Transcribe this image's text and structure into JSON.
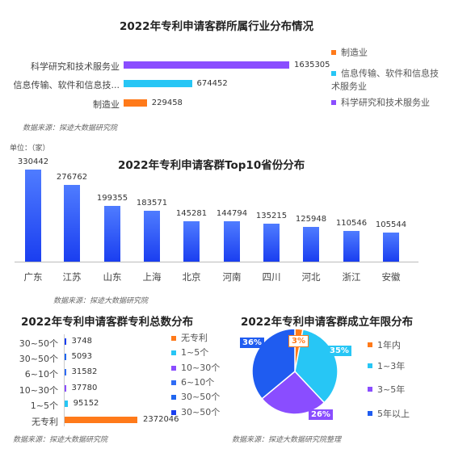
{
  "chart_data": [
    {
      "type": "bar",
      "orientation": "horizontal",
      "title": "2022年专利申请客群所属行业分布情况",
      "categories": [
        "科学研究和技术服务业",
        "信息传输、软件和信息技术服务业",
        "制造业"
      ],
      "categories_display": [
        "科学研究和技术服务业",
        "信息传输、软件和信息技...",
        "制造业"
      ],
      "values": [
        1635305,
        674452,
        229458
      ],
      "colors": [
        "#8a4dff",
        "#27c6f5",
        "#ff7a1a"
      ],
      "legend": [
        "制造业",
        "信息传输、软件和信息技术服务业",
        "科学研究和技术服务业"
      ],
      "legend_colors": [
        "#ff7a1a",
        "#27c6f5",
        "#8a4dff"
      ],
      "legend_placement": "right",
      "source": "数据来源：探迹大数据研究院"
    },
    {
      "type": "bar",
      "orientation": "vertical",
      "title": "2022年专利申请客群Top10省份分布",
      "unit": "单位：（家）",
      "categories": [
        "广东",
        "江苏",
        "山东",
        "上海",
        "北京",
        "河南",
        "四川",
        "河北",
        "浙江",
        "安徽"
      ],
      "values": [
        330442,
        276762,
        199355,
        183571,
        145281,
        144794,
        135215,
        125948,
        110546,
        105544
      ],
      "color_top": "#4f7cff",
      "color_bottom": "#1a3ef0",
      "source": "数据来源：探迹大数据研究院"
    },
    {
      "type": "bar",
      "orientation": "horizontal",
      "title": "2022年专利申请客群专利总数分布",
      "categories": [
        "30~50个",
        "30~50个",
        "6~10个",
        "10~30个",
        "1~5个",
        "无专利"
      ],
      "values": [
        3748,
        5093,
        31582,
        37780,
        95152,
        2372046
      ],
      "colors": [
        "#1a3ef0",
        "#1f66f0",
        "#2f6cf5",
        "#8a4dff",
        "#27c6f5",
        "#ff7a1a"
      ],
      "legend": [
        "无专利",
        "1~5个",
        "10~30个",
        "6~10个",
        "30~50个",
        "30~50个"
      ],
      "legend_colors": [
        "#ff7a1a",
        "#27c6f5",
        "#8a4dff",
        "#2f6cf5",
        "#1f66f0",
        "#1a3ef0"
      ],
      "legend_placement": "right",
      "source": "数据来源：探迹大数据研究院"
    },
    {
      "type": "pie",
      "title": "2022年专利申请客群成立年限分布",
      "slices": [
        {
          "label": "1年内",
          "value": 3,
          "display": "3%",
          "color": "#ff7a1a"
        },
        {
          "label": "1~3年",
          "value": 35,
          "display": "35%",
          "color": "#27c6f5"
        },
        {
          "label": "3~5年",
          "value": 26,
          "display": "26%",
          "color": "#8a4dff"
        },
        {
          "label": "5年以上",
          "value": 36,
          "display": "36%",
          "color": "#1f5cf0"
        }
      ],
      "legend_placement": "right",
      "source": "数据来源：探迹大数据研究院整理"
    }
  ]
}
